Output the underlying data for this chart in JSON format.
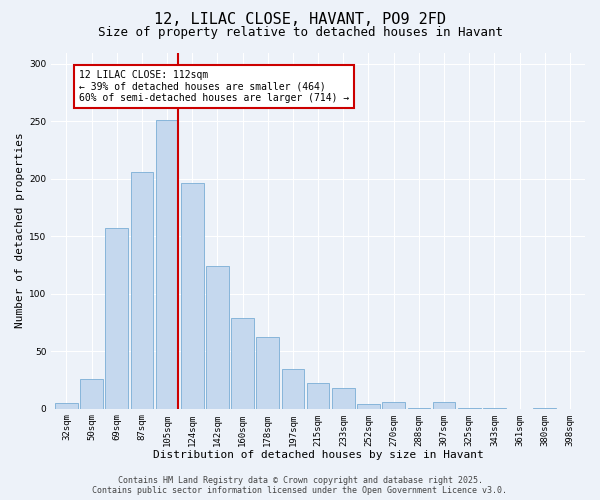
{
  "title": "12, LILAC CLOSE, HAVANT, PO9 2FD",
  "subtitle": "Size of property relative to detached houses in Havant",
  "bar_labels": [
    "32sqm",
    "50sqm",
    "69sqm",
    "87sqm",
    "105sqm",
    "124sqm",
    "142sqm",
    "160sqm",
    "178sqm",
    "197sqm",
    "215sqm",
    "233sqm",
    "252sqm",
    "270sqm",
    "288sqm",
    "307sqm",
    "325sqm",
    "343sqm",
    "361sqm",
    "380sqm",
    "398sqm"
  ],
  "bar_values": [
    5,
    26,
    157,
    206,
    251,
    196,
    124,
    79,
    62,
    35,
    22,
    18,
    4,
    6,
    1,
    6,
    1,
    1,
    0,
    1,
    0
  ],
  "bar_color": "#c5d8ee",
  "bar_edge_color": "#7aaed6",
  "property_line_color": "#cc0000",
  "annotation_text": "12 LILAC CLOSE: 112sqm\n← 39% of detached houses are smaller (464)\n60% of semi-detached houses are larger (714) →",
  "annotation_box_edgecolor": "#cc0000",
  "annotation_fill": "white",
  "xlabel": "Distribution of detached houses by size in Havant",
  "ylabel": "Number of detached properties",
  "ylim": [
    0,
    310
  ],
  "yticks": [
    0,
    50,
    100,
    150,
    200,
    250,
    300
  ],
  "footer_line1": "Contains HM Land Registry data © Crown copyright and database right 2025.",
  "footer_line2": "Contains public sector information licensed under the Open Government Licence v3.0.",
  "bg_color": "#edf2f9",
  "grid_color": "#ffffff",
  "title_fontsize": 11,
  "subtitle_fontsize": 9,
  "axis_label_fontsize": 8,
  "tick_fontsize": 6.5,
  "annotation_fontsize": 7,
  "footer_fontsize": 6
}
